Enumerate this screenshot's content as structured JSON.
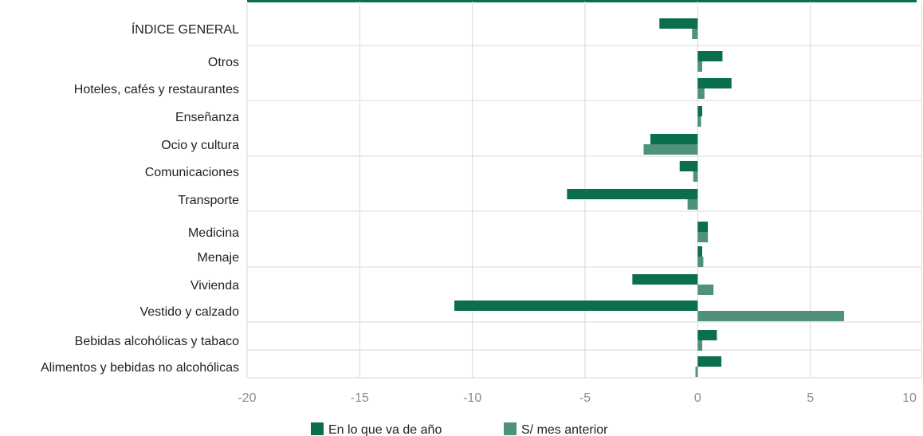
{
  "chart_data": {
    "type": "bar",
    "orientation": "horizontal",
    "categories": [
      "ÍNDICE GENERAL",
      "Otros",
      "Hoteles, cafés y restaurantes",
      "Enseñanza",
      "Ocio y cultura",
      "Comunicaciones",
      "Transporte",
      "Medicina",
      "Menaje",
      "Vivienda",
      "Vestido y calzado",
      "Bebidas alcohólicas y tabaco",
      "Alimentos y bebidas no alcohólicas"
    ],
    "series": [
      {
        "name": "En lo que va de año",
        "color": "#0b6e4f",
        "values": [
          -1.7,
          1.1,
          1.5,
          0.2,
          -2.1,
          -0.8,
          -5.8,
          0.45,
          0.2,
          -2.9,
          -10.8,
          0.85,
          1.05
        ]
      },
      {
        "name": "S/ mes anterior",
        "color": "#4f9179",
        "values": [
          -0.25,
          0.2,
          0.3,
          0.15,
          -2.4,
          -0.2,
          -0.45,
          0.45,
          0.25,
          0.7,
          6.5,
          0.2,
          -0.1
        ]
      }
    ],
    "xlim": [
      -20,
      10
    ],
    "x_ticks": [
      "-20",
      "-15",
      "-10",
      "-5",
      "0",
      "5",
      "10"
    ],
    "grid": true,
    "legend_position": "bottom",
    "title": "",
    "xlabel": "",
    "ylabel": "",
    "accent_color": "#0b6e4f"
  }
}
